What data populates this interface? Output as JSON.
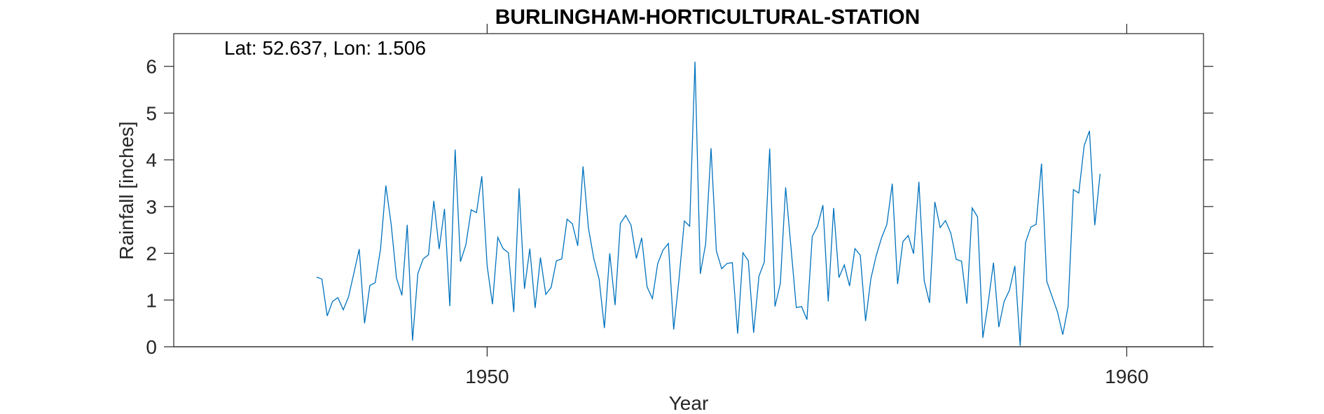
{
  "chart_data": {
    "type": "line",
    "title": "BURLINGHAM-HORTICULTURAL-STATION",
    "annotation": "Lat: 52.637, Lon: 1.506",
    "xlabel": "Year",
    "ylabel": "Rainfall [inches]",
    "xlim": [
      1945.1,
      1961.2
    ],
    "ylim": [
      0,
      6.7
    ],
    "xticks": [
      1950,
      1960
    ],
    "xtick_labels": [
      "1950",
      "1960"
    ],
    "yticks": [
      0,
      1,
      2,
      3,
      4,
      5,
      6
    ],
    "ytick_labels": [
      "0",
      "1",
      "2",
      "3",
      "4",
      "5",
      "6"
    ],
    "grid": false,
    "line_color": "#0072BD",
    "series": [
      {
        "start_year": 1947,
        "start_month": 5,
        "values": [
          1.49,
          1.45,
          0.66,
          0.97,
          1.05,
          0.79,
          1.07,
          1.58,
          2.09,
          0.5,
          1.31,
          1.37,
          2.09,
          3.45,
          2.62,
          1.47,
          1.1,
          2.61,
          0.13,
          1.57,
          1.88,
          1.97,
          3.12,
          2.09,
          2.95,
          0.87,
          4.22,
          1.82,
          2.18,
          2.93,
          2.87,
          3.65,
          1.73,
          0.91,
          2.34,
          2.1,
          2.01,
          0.74,
          3.39,
          1.24,
          2.1,
          0.83,
          1.91,
          1.12,
          1.27,
          1.84,
          1.88,
          2.73,
          2.63,
          2.16,
          3.86,
          2.54,
          1.89,
          1.45,
          0.4,
          2.0,
          0.89,
          2.64,
          2.81,
          2.6,
          1.89,
          2.33,
          1.28,
          1.03,
          1.78,
          2.07,
          2.21,
          0.37,
          1.45,
          2.69,
          2.58,
          6.1,
          1.56,
          2.2,
          4.25,
          2.05,
          1.67,
          1.78,
          1.8,
          0.28,
          2.01,
          1.84,
          0.3,
          1.51,
          1.81,
          4.24,
          0.86,
          1.35,
          3.41,
          2.13,
          0.84,
          0.86,
          0.58,
          2.36,
          2.58,
          3.03,
          0.97,
          2.97,
          1.48,
          1.75,
          1.3,
          2.1,
          1.96,
          0.55,
          1.46,
          1.95,
          2.33,
          2.62,
          3.49,
          1.34,
          2.25,
          2.38,
          1.99,
          3.53,
          1.41,
          0.94,
          3.1,
          2.55,
          2.7,
          2.43,
          1.87,
          1.83,
          0.92,
          2.97,
          2.78,
          0.19,
          0.94,
          1.8,
          0.42,
          0.97,
          1.21,
          1.73,
          0.02,
          2.23,
          2.56,
          2.62,
          3.92,
          1.4,
          1.07,
          0.75,
          0.26,
          0.86,
          3.36,
          3.29,
          4.3,
          4.62,
          2.6,
          3.7
        ]
      }
    ]
  }
}
